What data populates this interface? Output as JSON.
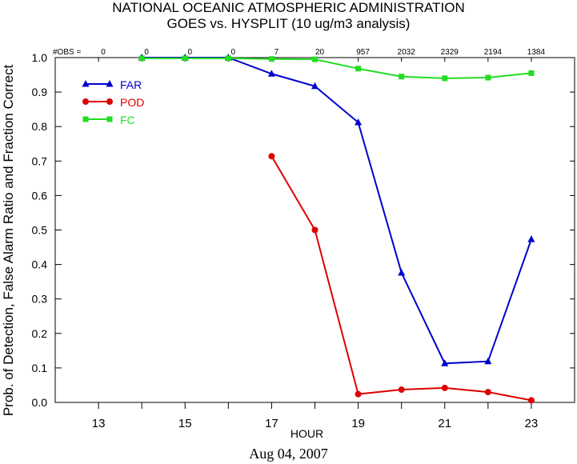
{
  "chart_data": {
    "type": "line",
    "title": "NATIONAL OCEANIC ATMOSPHERIC ADMINISTRATION",
    "subtitle": "GOES vs. HYSPLIT  (10 ug/m3 analysis)",
    "xlabel": "HOUR",
    "ylabel": "Prob. of Detection, False Alarm Ratio and Fraction Correct",
    "date_label": "Aug 04, 2007",
    "xlim": [
      12,
      24
    ],
    "ylim": [
      0,
      1
    ],
    "x_ticks": [
      13,
      15,
      17,
      19,
      21,
      23
    ],
    "y_ticks": [
      "0.0",
      "0.1",
      "0.2",
      "0.3",
      "0.4",
      "0.5",
      "0.6",
      "0.7",
      "0.8",
      "0.9",
      "1.0"
    ],
    "obs_label": "#OBS =",
    "obs": [
      {
        "hour": 13,
        "count": "0"
      },
      {
        "hour": 14,
        "count": "0"
      },
      {
        "hour": 15,
        "count": "0"
      },
      {
        "hour": 16,
        "count": "0"
      },
      {
        "hour": 17,
        "count": "7"
      },
      {
        "hour": 18,
        "count": "20"
      },
      {
        "hour": 19,
        "count": "957"
      },
      {
        "hour": 20,
        "count": "2032"
      },
      {
        "hour": 21,
        "count": "2329"
      },
      {
        "hour": 22,
        "count": "2194"
      },
      {
        "hour": 23,
        "count": "1384"
      }
    ],
    "series": [
      {
        "name": "FAR",
        "color": "#0000cc",
        "marker": "triangle",
        "x": [
          14,
          15,
          16,
          17,
          18,
          19,
          20,
          21,
          22,
          23
        ],
        "values": [
          1.0,
          1.0,
          1.0,
          0.953,
          0.917,
          0.812,
          0.376,
          0.113,
          0.119,
          0.473
        ]
      },
      {
        "name": "POD",
        "color": "#dd0000",
        "marker": "circle",
        "x": [
          17,
          18,
          19,
          20,
          21,
          22,
          23
        ],
        "values": [
          0.714,
          0.5,
          0.024,
          0.037,
          0.042,
          0.03,
          0.006
        ]
      },
      {
        "name": "FC",
        "color": "#22dd22",
        "marker": "square",
        "x": [
          14,
          15,
          16,
          17,
          18,
          19,
          20,
          21,
          22,
          23
        ],
        "values": [
          0.998,
          0.998,
          0.998,
          0.996,
          0.995,
          0.968,
          0.945,
          0.94,
          0.942,
          0.955
        ]
      }
    ],
    "legend_position": "top-left",
    "grid": false
  }
}
